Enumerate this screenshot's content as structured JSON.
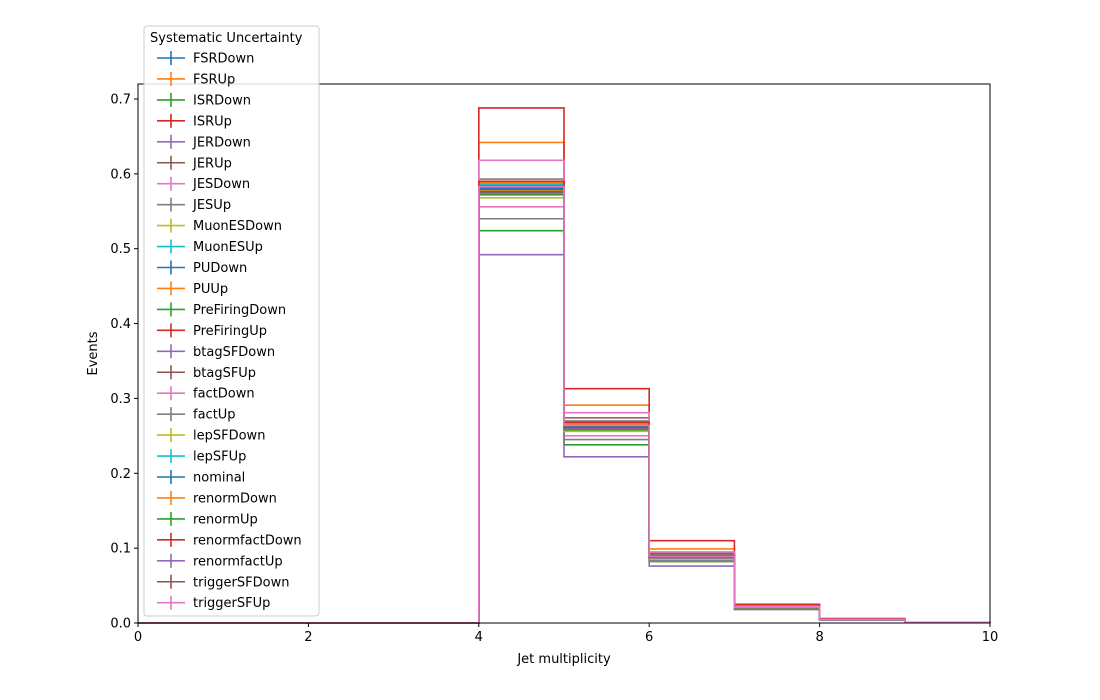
{
  "chart_data": {
    "type": "line",
    "style": "step-histogram",
    "xlabel": "Jet multiplicity",
    "ylabel": "Events",
    "xlim": [
      0,
      10
    ],
    "ylim": [
      0,
      0.72
    ],
    "xticks": [
      "0",
      "2",
      "4",
      "6",
      "8",
      "10"
    ],
    "yticks": [
      "0.0",
      "0.1",
      "0.2",
      "0.3",
      "0.4",
      "0.5",
      "0.6",
      "0.7"
    ],
    "bin_edges": [
      0,
      1,
      2,
      3,
      4,
      5,
      6,
      7,
      8,
      9,
      10
    ],
    "grid": false,
    "legend": {
      "title": "Systematic Uncertainty",
      "placement": "top-left"
    },
    "series": [
      {
        "name": "FSRDown",
        "color": "#1f77b4",
        "values": [
          0,
          0,
          0,
          0,
          0.58,
          0.262,
          0.088,
          0.021,
          0.005,
          0.001
        ]
      },
      {
        "name": "FSRUp",
        "color": "#ff7f0e",
        "values": [
          0,
          0,
          0,
          0,
          0.642,
          0.291,
          0.099,
          0.023,
          0.005,
          0.001
        ]
      },
      {
        "name": "ISRDown",
        "color": "#2ca02c",
        "values": [
          0,
          0,
          0,
          0,
          0.524,
          0.238,
          0.082,
          0.019,
          0.004,
          0.001
        ]
      },
      {
        "name": "ISRUp",
        "color": "#d62728",
        "values": [
          0,
          0,
          0,
          0,
          0.688,
          0.313,
          0.11,
          0.025,
          0.006,
          0.001
        ]
      },
      {
        "name": "JERDown",
        "color": "#9467bd",
        "values": [
          0,
          0,
          0,
          0,
          0.575,
          0.26,
          0.087,
          0.021,
          0.005,
          0.001
        ]
      },
      {
        "name": "JERUp",
        "color": "#8c564b",
        "values": [
          0,
          0,
          0,
          0,
          0.585,
          0.265,
          0.089,
          0.021,
          0.005,
          0.001
        ]
      },
      {
        "name": "JESDown",
        "color": "#e377c2",
        "values": [
          0,
          0,
          0,
          0,
          0.556,
          0.25,
          0.084,
          0.02,
          0.005,
          0.001
        ]
      },
      {
        "name": "JESUp",
        "color": "#7f7f7f",
        "values": [
          0,
          0,
          0,
          0,
          0.593,
          0.27,
          0.092,
          0.022,
          0.005,
          0.001
        ]
      },
      {
        "name": "MuonESDown",
        "color": "#bcbd22",
        "values": [
          0,
          0,
          0,
          0,
          0.578,
          0.262,
          0.088,
          0.021,
          0.005,
          0.001
        ]
      },
      {
        "name": "MuonESUp",
        "color": "#17becf",
        "values": [
          0,
          0,
          0,
          0,
          0.581,
          0.263,
          0.088,
          0.021,
          0.005,
          0.001
        ]
      },
      {
        "name": "PUDown",
        "color": "#1f77b4",
        "values": [
          0,
          0,
          0,
          0,
          0.584,
          0.266,
          0.089,
          0.021,
          0.005,
          0.001
        ]
      },
      {
        "name": "PUUp",
        "color": "#ff7f0e",
        "values": [
          0,
          0,
          0,
          0,
          0.576,
          0.259,
          0.087,
          0.021,
          0.005,
          0.001
        ]
      },
      {
        "name": "PreFiringDown",
        "color": "#2ca02c",
        "values": [
          0,
          0,
          0,
          0,
          0.582,
          0.264,
          0.088,
          0.021,
          0.005,
          0.001
        ]
      },
      {
        "name": "PreFiringUp",
        "color": "#d62728",
        "values": [
          0,
          0,
          0,
          0,
          0.579,
          0.262,
          0.088,
          0.021,
          0.005,
          0.001
        ]
      },
      {
        "name": "btagSFDown",
        "color": "#9467bd",
        "values": [
          0,
          0,
          0,
          0,
          0.492,
          0.222,
          0.076,
          0.018,
          0.004,
          0.001
        ]
      },
      {
        "name": "btagSFUp",
        "color": "#8c564b",
        "values": [
          0,
          0,
          0,
          0,
          0.586,
          0.274,
          0.093,
          0.022,
          0.005,
          0.001
        ]
      },
      {
        "name": "factDown",
        "color": "#e377c2",
        "values": [
          0,
          0,
          0,
          0,
          0.618,
          0.281,
          0.095,
          0.022,
          0.005,
          0.001
        ]
      },
      {
        "name": "factUp",
        "color": "#7f7f7f",
        "values": [
          0,
          0,
          0,
          0,
          0.54,
          0.245,
          0.083,
          0.02,
          0.005,
          0.001
        ]
      },
      {
        "name": "lepSFDown",
        "color": "#bcbd22",
        "values": [
          0,
          0,
          0,
          0,
          0.568,
          0.256,
          0.086,
          0.02,
          0.005,
          0.001
        ]
      },
      {
        "name": "lepSFUp",
        "color": "#17becf",
        "values": [
          0,
          0,
          0,
          0,
          0.586,
          0.268,
          0.09,
          0.021,
          0.005,
          0.001
        ]
      },
      {
        "name": "nominal",
        "color": "#1f77b4",
        "values": [
          0,
          0,
          0,
          0,
          0.58,
          0.262,
          0.088,
          0.021,
          0.005,
          0.001
        ]
      },
      {
        "name": "renormDown",
        "color": "#ff7f0e",
        "values": [
          0,
          0,
          0,
          0,
          0.588,
          0.266,
          0.09,
          0.021,
          0.005,
          0.001
        ]
      },
      {
        "name": "renormUp",
        "color": "#2ca02c",
        "values": [
          0,
          0,
          0,
          0,
          0.572,
          0.258,
          0.087,
          0.02,
          0.005,
          0.001
        ]
      },
      {
        "name": "renormfactDown",
        "color": "#d62728",
        "values": [
          0,
          0,
          0,
          0,
          0.59,
          0.268,
          0.09,
          0.021,
          0.005,
          0.001
        ]
      },
      {
        "name": "renormfactUp",
        "color": "#9467bd",
        "values": [
          0,
          0,
          0,
          0,
          0.574,
          0.26,
          0.087,
          0.021,
          0.005,
          0.001
        ]
      },
      {
        "name": "triggerSFDown",
        "color": "#8c564b",
        "values": [
          0,
          0,
          0,
          0,
          0.576,
          0.261,
          0.088,
          0.021,
          0.005,
          0.001
        ]
      },
      {
        "name": "triggerSFUp",
        "color": "#e377c2",
        "values": [
          0,
          0,
          0,
          0,
          0.583,
          0.264,
          0.089,
          0.021,
          0.005,
          0.001
        ]
      }
    ]
  }
}
